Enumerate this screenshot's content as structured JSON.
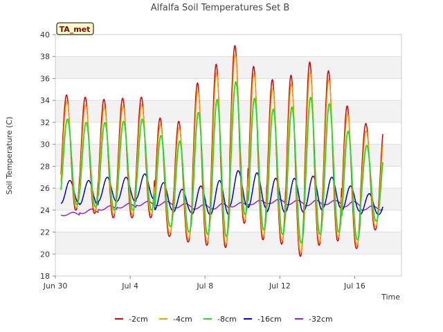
{
  "chart_data": {
    "type": "line",
    "title": "Alfalfa Soil Temperatures Set B",
    "xlabel": "Time",
    "ylabel": "Soil Temperature (C)",
    "badge": "TA_met",
    "ylim": [
      18,
      40
    ],
    "yticks": [
      18,
      20,
      22,
      24,
      26,
      28,
      30,
      32,
      34,
      36,
      38,
      40
    ],
    "xlim_days": [
      0,
      18.5
    ],
    "xticks": [
      {
        "day": 0,
        "label": "Jun 30"
      },
      {
        "day": 4,
        "label": "Jul 4"
      },
      {
        "day": 8,
        "label": "Jul 8"
      },
      {
        "day": 12,
        "label": "Jul 12"
      },
      {
        "day": 16,
        "label": "Jul 16"
      }
    ],
    "x_data_range_days": [
      0.3,
      17.5
    ],
    "grid": true,
    "legend_position": "bottom",
    "series": [
      {
        "name": "-2cm",
        "color": "#dd0000",
        "daily_max": [
          34.5,
          34.3,
          34.1,
          34.2,
          34.3,
          32.4,
          32.1,
          35.6,
          37.3,
          39.0,
          37.1,
          35.9,
          36.3,
          37.5,
          36.7,
          33.5,
          31.9
        ],
        "daily_min": [
          24.0,
          23.7,
          23.3,
          23.3,
          23.3,
          21.6,
          21.1,
          20.8,
          20.6,
          22.8,
          21.3,
          20.9,
          19.8,
          20.8,
          21.2,
          20.5,
          22.2
        ]
      },
      {
        "name": "-4cm",
        "color": "#ff9900",
        "daily_max": [
          33.9,
          33.6,
          33.4,
          33.5,
          33.6,
          31.8,
          31.5,
          34.9,
          36.5,
          38.2,
          36.4,
          35.1,
          35.5,
          36.6,
          35.9,
          32.8,
          31.2
        ],
        "daily_min": [
          24.2,
          23.9,
          23.6,
          23.6,
          23.6,
          21.9,
          21.4,
          21.1,
          20.9,
          23.1,
          21.6,
          21.2,
          20.1,
          21.1,
          21.5,
          20.8,
          22.5
        ]
      },
      {
        "name": "-8cm",
        "color": "#22dd22",
        "daily_max": [
          32.3,
          32.0,
          32.0,
          32.1,
          32.3,
          30.8,
          30.3,
          32.9,
          34.1,
          35.7,
          34.2,
          33.2,
          33.4,
          34.3,
          33.7,
          31.2,
          29.9
        ],
        "daily_min": [
          24.5,
          24.3,
          24.0,
          24.0,
          24.0,
          22.5,
          22.0,
          21.8,
          21.6,
          23.6,
          22.2,
          21.8,
          21.0,
          21.8,
          22.0,
          21.3,
          23.0
        ]
      },
      {
        "name": "-16cm",
        "color": "#0000cc",
        "daily_max": [
          26.7,
          26.7,
          27.0,
          27.0,
          27.3,
          26.5,
          25.9,
          26.2,
          26.7,
          27.6,
          27.4,
          26.9,
          26.9,
          27.1,
          27.0,
          26.2,
          25.5
        ],
        "daily_min": [
          24.6,
          24.5,
          24.8,
          24.8,
          25.0,
          24.0,
          23.8,
          23.6,
          23.6,
          24.3,
          24.2,
          23.8,
          23.8,
          24.0,
          24.2,
          23.9,
          23.6
        ]
      },
      {
        "name": "-32cm",
        "color": "#9922cc",
        "daily_max": [
          23.8,
          24.1,
          24.4,
          24.6,
          24.8,
          24.8,
          24.6,
          24.5,
          24.6,
          24.7,
          24.9,
          25.0,
          24.9,
          24.9,
          24.9,
          24.8,
          24.4
        ],
        "daily_min": [
          23.5,
          23.7,
          24.0,
          24.2,
          24.4,
          24.4,
          24.2,
          24.1,
          24.1,
          24.3,
          24.5,
          24.6,
          24.5,
          24.4,
          24.5,
          24.3,
          24.0
        ]
      }
    ]
  }
}
